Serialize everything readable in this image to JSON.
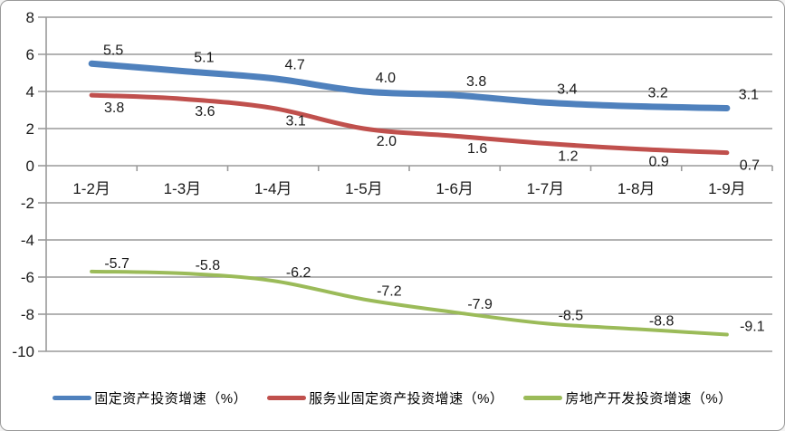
{
  "chart_data": {
    "type": "line",
    "smooth": true,
    "grid": true,
    "legend_position": "bottom",
    "categories": [
      "1-2月",
      "1-3月",
      "1-4月",
      "1-5月",
      "1-6月",
      "1-7月",
      "1-8月",
      "1-9月"
    ],
    "series": [
      {
        "name": "固定资产投资增速（%）",
        "color": "#4F81BD",
        "stroke_width": 7,
        "values": [
          5.5,
          5.1,
          4.7,
          4.0,
          3.8,
          3.4,
          3.2,
          3.1
        ],
        "label_position": "above",
        "label_dx": 24,
        "label_dy": -10
      },
      {
        "name": "服务业固定资产投资增速（%）",
        "color": "#C0504D",
        "stroke_width": 5,
        "values": [
          3.8,
          3.6,
          3.1,
          2.0,
          1.6,
          1.2,
          0.9,
          0.7
        ],
        "label_position": "below",
        "label_dx": 25,
        "label_dy": 19
      },
      {
        "name": "房地产开发投资增速（%）",
        "color": "#9BBB59",
        "stroke_width": 4,
        "values": [
          -5.7,
          -5.8,
          -6.2,
          -7.2,
          -7.9,
          -8.5,
          -8.8,
          -9.1
        ],
        "label_position": "above",
        "label_dx": 28,
        "label_dy": -4
      }
    ],
    "y_axis": {
      "min": -10,
      "max": 8,
      "step": 2,
      "tick_labels": [
        "8",
        "6",
        "4",
        "2",
        "0",
        "-2",
        "-4",
        "-6",
        "-8",
        "-10"
      ]
    },
    "label_decimals": 1,
    "colors": {
      "grid": "#9a9a9a",
      "axis": "#9a9a9a",
      "text": "#1a1a1a",
      "frame_border": "#9a9a9a",
      "background": "#ffffff"
    }
  }
}
